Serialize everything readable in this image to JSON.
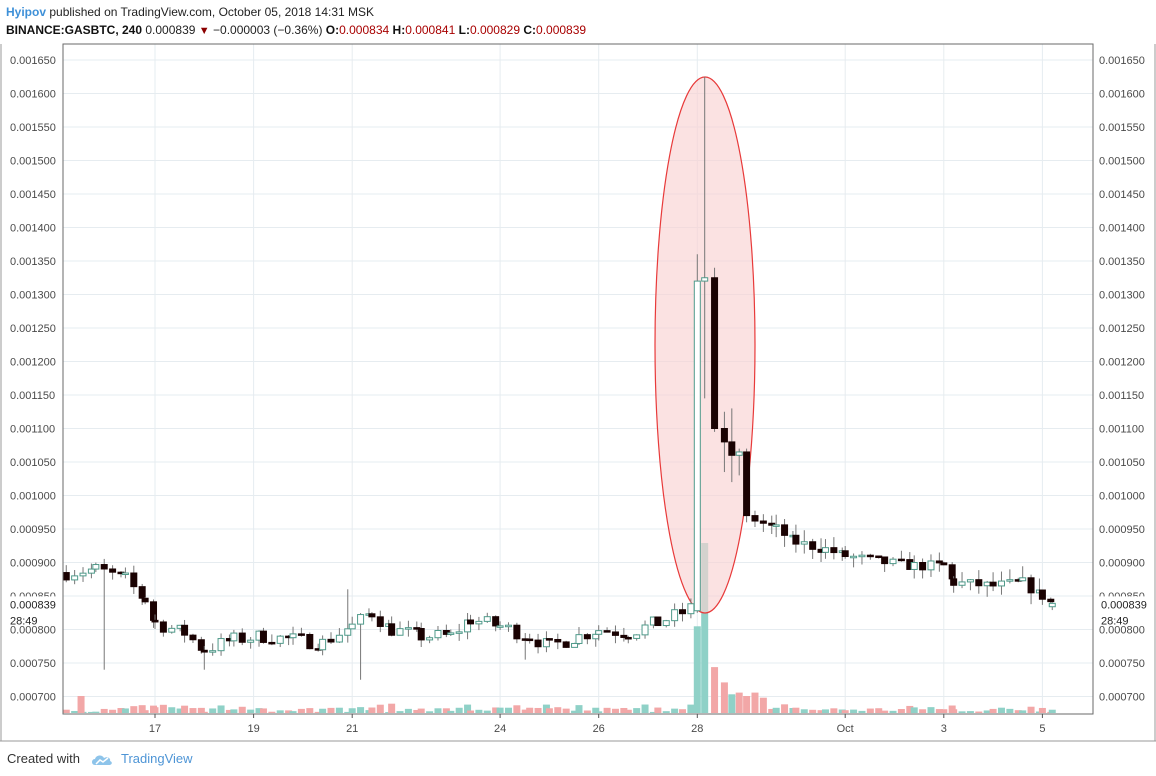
{
  "header": {
    "author": "Hyipov",
    "published": "published on TradingView.com, October 05, 2018 14:31 MSK",
    "symbol": "BINANCE:GASBTC, 240",
    "last": "0.000839",
    "change": "−0.000003 (−0.36%)",
    "o_label": "O:",
    "o_value": "0.000834",
    "h_label": "H:",
    "h_value": "0.000841",
    "l_label": "L:",
    "l_value": "0.000829",
    "c_label": "C:",
    "c_value": "0.000839"
  },
  "footer": {
    "created_with": "Created with",
    "brand": "TradingView"
  },
  "colors": {
    "up_fill": "#ffffff",
    "up_border": "#4f9a8a",
    "down_fill": "#1a0202",
    "wick": "#777777",
    "vol_up": "#8fd1c7",
    "vol_down": "#f2a7a7",
    "ellipse_stroke": "#e83a3a",
    "ellipse_fill": "#f9d2d2",
    "grid": "#e6ecf0"
  },
  "chart_data": {
    "type": "candlestick",
    "symbol": "BINANCE:GASBTC",
    "interval": "240",
    "ylim": [
      0.00068,
      0.00167
    ],
    "yticks": [
      "0.001650",
      "0.001600",
      "0.001550",
      "0.001500",
      "0.001450",
      "0.001400",
      "0.001350",
      "0.001300",
      "0.001250",
      "0.001200",
      "0.001150",
      "0.001100",
      "0.001050",
      "0.001000",
      "0.000950",
      "0.000900",
      "0.000850",
      "0.000800",
      "0.000750",
      "0.000700"
    ],
    "x_axis_labels": [
      {
        "label": "17",
        "day": 17
      },
      {
        "label": "19",
        "day": 19
      },
      {
        "label": "21",
        "day": 21
      },
      {
        "label": "24",
        "day": 24
      },
      {
        "label": "26",
        "day": 26
      },
      {
        "label": "28",
        "day": 28
      },
      {
        "label": "Oct",
        "day": 31
      },
      {
        "label": "3",
        "day": 33
      },
      {
        "label": "5",
        "day": 35
      }
    ],
    "price_label": "0.000839",
    "countdown": "28:49",
    "annotation": "ellipse",
    "anchors": [
      [
        15.2,
        0.000885
      ],
      [
        15.8,
        0.00089
      ],
      [
        16.4,
        0.000875
      ],
      [
        16.8,
        0.000845
      ],
      [
        17.0,
        0.00081
      ],
      [
        17.6,
        0.000795
      ],
      [
        18.0,
        0.00077
      ],
      [
        18.6,
        0.000785
      ],
      [
        19.2,
        0.00079
      ],
      [
        19.8,
        0.000785
      ],
      [
        20.4,
        0.00078
      ],
      [
        21.0,
        0.000805
      ],
      [
        21.4,
        0.000825
      ],
      [
        21.8,
        0.0008
      ],
      [
        22.4,
        0.00079
      ],
      [
        23.0,
        0.00079
      ],
      [
        23.4,
        0.000815
      ],
      [
        24.0,
        0.000805
      ],
      [
        24.6,
        0.00079
      ],
      [
        25.0,
        0.000775
      ],
      [
        25.6,
        0.00079
      ],
      [
        26.0,
        0.0008
      ],
      [
        26.6,
        0.000795
      ],
      [
        27.2,
        0.00081
      ],
      [
        27.7,
        0.000825
      ],
      [
        27.95,
        0.000835
      ]
    ],
    "spike_candles": [
      {
        "day": 28.0,
        "o": 0.000828,
        "h": 0.00136,
        "l": 0.000825,
        "c": 0.00132
      },
      {
        "day": 28.15,
        "o": 0.00132,
        "h": 0.001625,
        "l": 0.001145,
        "c": 0.001325
      },
      {
        "day": 28.35,
        "o": 0.001325,
        "h": 0.00134,
        "l": 0.001095,
        "c": 0.0011
      },
      {
        "day": 28.55,
        "o": 0.0011,
        "h": 0.001125,
        "l": 0.001035,
        "c": 0.00108
      },
      {
        "day": 28.7,
        "o": 0.00108,
        "h": 0.00113,
        "l": 0.00102,
        "c": 0.00106
      },
      {
        "day": 28.85,
        "o": 0.00106,
        "h": 0.00107,
        "l": 0.00103,
        "c": 0.001065
      },
      {
        "day": 29.0,
        "o": 0.001065,
        "h": 0.00107,
        "l": 0.00096,
        "c": 0.00097
      }
    ],
    "tail_anchors": [
      [
        29.0,
        0.00097
      ],
      [
        29.6,
        0.00095
      ],
      [
        30.0,
        0.00093
      ],
      [
        30.6,
        0.00092
      ],
      [
        31.0,
        0.00091
      ],
      [
        31.8,
        0.0009
      ],
      [
        32.4,
        0.000895
      ],
      [
        33.0,
        0.000895
      ],
      [
        33.2,
        0.00087
      ],
      [
        34.0,
        0.000865
      ],
      [
        34.6,
        0.00087
      ],
      [
        35.0,
        0.00085
      ],
      [
        35.2,
        0.000839
      ]
    ],
    "volume": {
      "spike": [
        {
          "day": 27.95,
          "v": 0.51,
          "up": true
        },
        {
          "day": 28.1,
          "v": 1.0,
          "up": true
        },
        {
          "day": 28.25,
          "v": 0.42,
          "up": true
        },
        {
          "day": 28.4,
          "v": 0.27,
          "up": false
        },
        {
          "day": 28.55,
          "v": 0.18,
          "up": false
        },
        {
          "day": 28.7,
          "v": 0.11,
          "up": true
        },
        {
          "day": 28.85,
          "v": 0.12,
          "up": false
        },
        {
          "day": 29.0,
          "v": 0.1,
          "up": false
        },
        {
          "day": 29.15,
          "v": 0.12,
          "up": false
        },
        {
          "day": 29.3,
          "v": 0.09,
          "up": false
        }
      ]
    }
  }
}
